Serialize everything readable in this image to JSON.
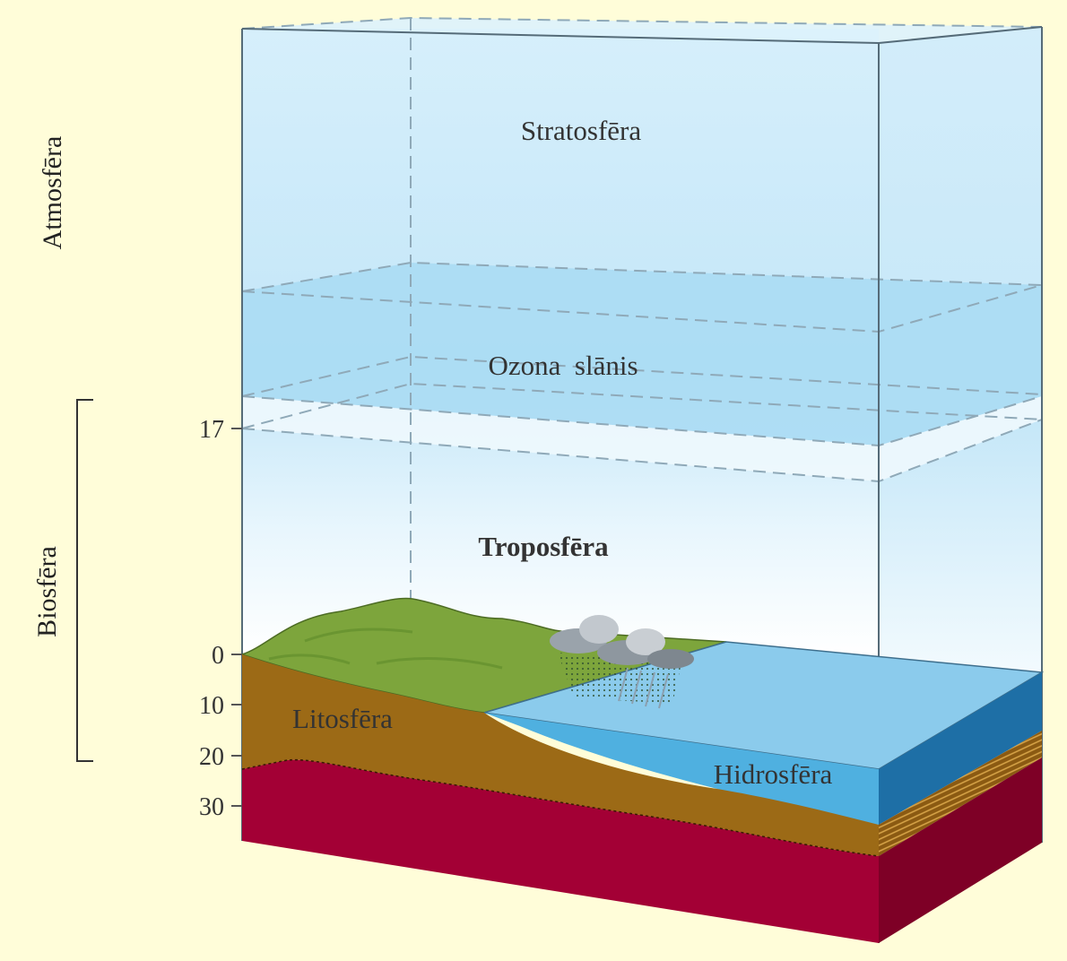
{
  "labels": {
    "stratosphere": "Stratosfēra",
    "ozone": "Ozona  slānis",
    "troposphere": "Troposfēra",
    "lithosphere": "Litosfēra",
    "hydrosphere": "Hidrosfēra",
    "atmosphere_side": "Atmosfēra",
    "biosphere_side": "Biosfēra"
  },
  "axis_ticks": [
    "17",
    "0",
    "10",
    "20",
    "30"
  ],
  "colors": {
    "background": "#fffdd9",
    "sky_top": "#d8f0fc",
    "ozone_layer": "#a9dcf3",
    "land_green": "#7aa33a",
    "soil_brown": "#9b6914",
    "mantle_red": "#a30033",
    "water_surface": "#89c9ea",
    "water_side": "#1f72a8"
  }
}
